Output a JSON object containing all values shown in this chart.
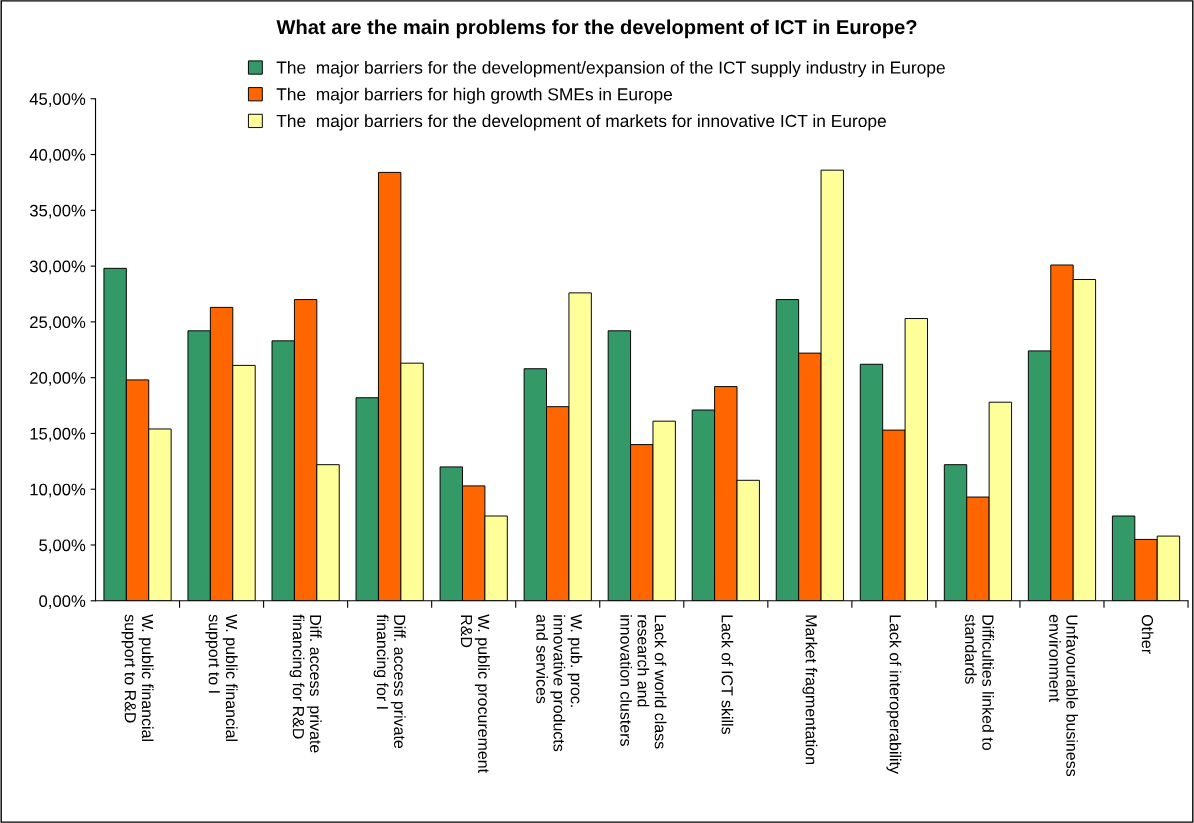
{
  "chart_data": {
    "type": "bar",
    "title": "What are the main problems for the development of ICT in Europe?",
    "categories": [
      "W. public financial\nsupport to R&D",
      "W. public financial\nsupport to I",
      "Diff. access  private\nfinancing for R&D",
      "Diff. access private\nfinancing for I",
      "W. public procurement\nR&D",
      "W. pub. proc.\ninnovative products\nand services",
      "Lack of world class\nresearch and\ninnovation clusters",
      "Lack of ICT skills",
      "Market fragmentation",
      "Lack of interoperability",
      "Difficulties linked to\nstandards",
      "Unfavourable business\nenvironment",
      "Other"
    ],
    "series": [
      {
        "name": "The  major barriers for the development/expansion of the ICT supply industry in Europe",
        "color": "#339966",
        "values": [
          29.8,
          24.2,
          23.3,
          18.2,
          12.0,
          20.8,
          24.2,
          17.1,
          27.0,
          21.2,
          12.2,
          22.4,
          7.6
        ]
      },
      {
        "name": "The  major barriers for high growth SMEs in Europe",
        "color": "#ff6600",
        "values": [
          19.8,
          26.3,
          27.0,
          38.4,
          10.3,
          17.4,
          14.0,
          19.2,
          22.2,
          15.3,
          9.3,
          30.1,
          5.5
        ]
      },
      {
        "name": "The  major barriers for the development of markets for innovative ICT in Europe",
        "color": "#ffff99",
        "values": [
          15.4,
          21.1,
          12.2,
          21.3,
          7.6,
          27.6,
          16.1,
          10.8,
          38.6,
          25.3,
          17.8,
          28.8,
          5.8
        ]
      }
    ],
    "ylim": [
      0,
      45
    ],
    "yticks": [
      {
        "value": 0,
        "label": "0,00%"
      },
      {
        "value": 5,
        "label": "5,00%"
      },
      {
        "value": 10,
        "label": "10,00%"
      },
      {
        "value": 15,
        "label": "15,00%"
      },
      {
        "value": 20,
        "label": "20,00%"
      },
      {
        "value": 25,
        "label": "25,00%"
      },
      {
        "value": 30,
        "label": "30,00%"
      },
      {
        "value": 35,
        "label": "35,00%"
      },
      {
        "value": 40,
        "label": "40,00%"
      },
      {
        "value": 45,
        "label": "45,00%"
      }
    ],
    "grid": false,
    "legend": "top"
  }
}
